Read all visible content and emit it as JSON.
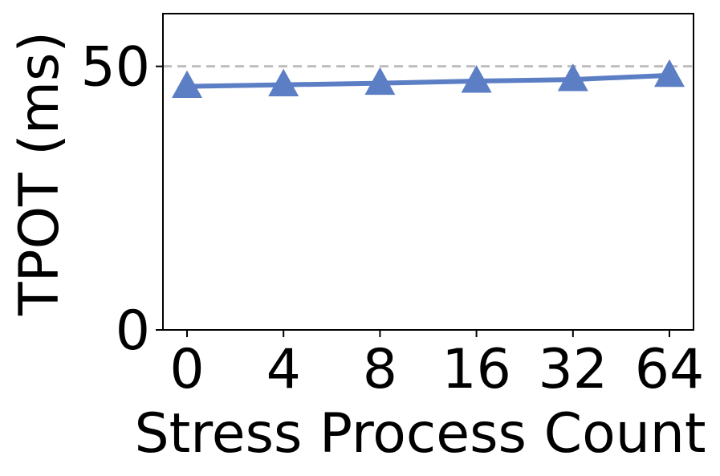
{
  "chart_data": {
    "type": "line",
    "title": "",
    "xlabel": "Stress Process Count",
    "ylabel": "TPOT (ms)",
    "categories": [
      "0",
      "4",
      "8",
      "16",
      "32",
      "64"
    ],
    "series": [
      {
        "values": [
          46.2,
          46.5,
          46.8,
          47.2,
          47.5,
          48.3
        ],
        "color": "#5b7ec4",
        "marker": "triangle-up"
      }
    ],
    "reference_line": {
      "y": 50,
      "style": "dashed",
      "color": "#bfbfbf"
    },
    "yticks": [
      "0",
      "50"
    ],
    "ytick_values": [
      0,
      50
    ],
    "ylim": [
      0,
      60
    ],
    "grid": false,
    "legend": "none"
  }
}
